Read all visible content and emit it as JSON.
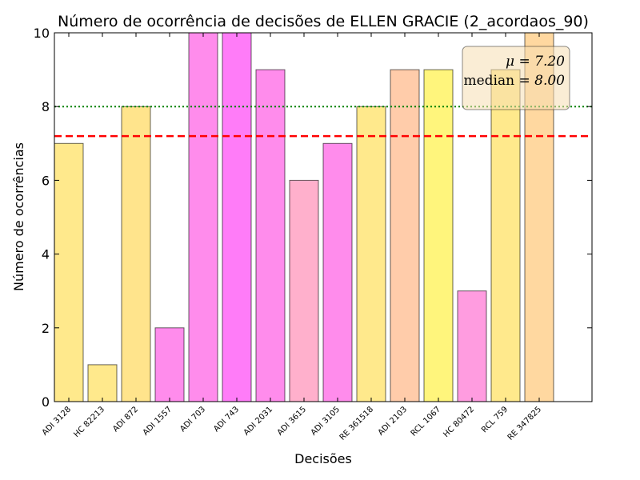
{
  "chart_data": {
    "type": "bar",
    "title": "Número de ocorrência de decisões de ELLEN GRACIE (2_acordaos_90)",
    "xlabel": "Decisões",
    "ylabel": "Número de ocorrências",
    "ylim": [
      0,
      10
    ],
    "yticks": [
      "0",
      "2",
      "4",
      "6",
      "8",
      "10"
    ],
    "categories": [
      "ADI 3128",
      "HC 82213",
      "ADI 872",
      "ADI 1557",
      "ADI 703",
      "ADI 743",
      "ADI 2031",
      "ADI 3615",
      "ADI 3105",
      "RE 361518",
      "ADI 2103",
      "RCL 1067",
      "HC 80472",
      "RCL 759",
      "RE 347825"
    ],
    "values": [
      7,
      1,
      8,
      2,
      10,
      10,
      9,
      6,
      7,
      8,
      9,
      9,
      3,
      9,
      10
    ],
    "colors": [
      "#ffe98c",
      "#ffe98c",
      "#ffe48c",
      "#ff8cec",
      "#ff8cec",
      "#ff7cf8",
      "#ff8cec",
      "#ffb0cc",
      "#ff8cec",
      "#ffe98c",
      "#ffccaa",
      "#fff57c",
      "#ff9ce0",
      "#ffe98c",
      "#ffd8a0"
    ],
    "grid": false,
    "reference_lines": [
      {
        "name": "mean",
        "value": 7.2,
        "style": "dashed",
        "color": "#ff0000"
      },
      {
        "name": "median",
        "value": 8.0,
        "style": "dotted",
        "color": "#008000"
      }
    ],
    "annotation": {
      "mean_symbol": "μ",
      "mean_value": "7.20",
      "median_label": "median",
      "median_value": "8.00",
      "placement": "top-right",
      "box_color": "#f5deb3"
    }
  }
}
